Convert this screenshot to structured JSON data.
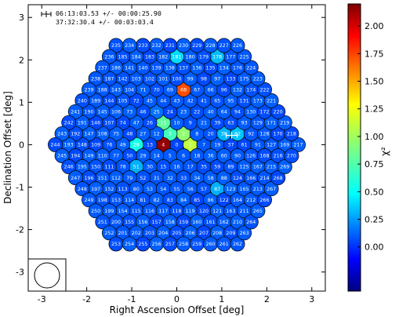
{
  "chart_data": {
    "type": "scatter",
    "xlabel": "Right Ascension Offset [deg]",
    "ylabel": "Declination Offset [deg]",
    "xlim": [
      -3.3,
      3.3
    ],
    "ylim": [
      -3.45,
      3.3
    ],
    "x_ticks": [
      "-3",
      "-2",
      "-1",
      "0",
      "1",
      "2",
      "3"
    ],
    "y_ticks": [
      "-3",
      "-2",
      "-1",
      "0",
      "1",
      "2",
      "3"
    ],
    "colorbar": {
      "label": "χ²",
      "range": [
        -0.4,
        2.2
      ],
      "ticks": [
        "2.00",
        "1.75",
        "1.50",
        "1.25",
        "1.00",
        "0.75",
        "0.50",
        "0.25",
        "0.00"
      ]
    },
    "annotations": {
      "line1": "06:13:03.53 +/- 00:00:25.90",
      "line2": "37:32:30.4 +/- 00:03:03.4"
    },
    "source_marker": [
      1.22,
      0.22
    ],
    "hex_step": 0.3,
    "rings": 9,
    "highlights": {
      "4": 2.15,
      "68": 1.72,
      "1": 1.1,
      "2": 0.95,
      "3": 0.7,
      "11": 0.8,
      "28": 0.55,
      "38": 0.32,
      "62": 0.35,
      "87": 0.3,
      "178": 0.33,
      "181": 0.4,
      "51": 0.3,
      "25": 0.15,
      "123": 0.12,
      "211": 0.1
    },
    "beam_labels": [
      "16",
      "169",
      "170",
      "17",
      "171",
      "172",
      "18",
      "173",
      "174",
      "19",
      "175",
      "176",
      "20",
      "177",
      "215",
      "216",
      "171",
      "215",
      "214",
      "217",
      "168",
      "212",
      "213",
      "211",
      "210",
      "209",
      "208",
      "207",
      "206",
      "205",
      "204",
      "203",
      "202",
      "201",
      "200",
      "199",
      "198",
      "197",
      "196",
      "195",
      "194",
      "193",
      "192",
      "191",
      "190",
      "189",
      "188",
      "187",
      "186",
      "185",
      "184",
      "183",
      "182",
      "181",
      "180",
      "179",
      "178"
    ]
  }
}
